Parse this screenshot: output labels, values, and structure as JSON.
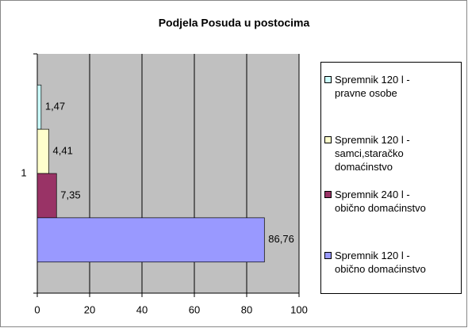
{
  "chart_data": {
    "type": "hbar",
    "title": "Podjela Posuda u postocima",
    "categories": [
      "1"
    ],
    "series": [
      {
        "name": "Spremnik 120 l - pravne osobe",
        "color": "#ccffff",
        "values": [
          1.47
        ],
        "value_labels": [
          "1,47"
        ]
      },
      {
        "name": "Spremnik 120 l - samci,staračko domaćinstvo",
        "color": "#ffffcc",
        "values": [
          4.41
        ],
        "value_labels": [
          "4,41"
        ]
      },
      {
        "name": "Spremnik 240 l - obično domaćinstvo",
        "color": "#993366",
        "values": [
          7.35
        ],
        "value_labels": [
          "7,35"
        ]
      },
      {
        "name": "Spremnik 120 l - obično domaćinstvo",
        "color": "#9999ff",
        "values": [
          86.76
        ],
        "value_labels": [
          "86,76"
        ]
      }
    ],
    "xlim": [
      0,
      100
    ],
    "xticks": [
      0,
      20,
      40,
      60,
      80,
      100
    ],
    "grid": true,
    "legend": "right"
  }
}
